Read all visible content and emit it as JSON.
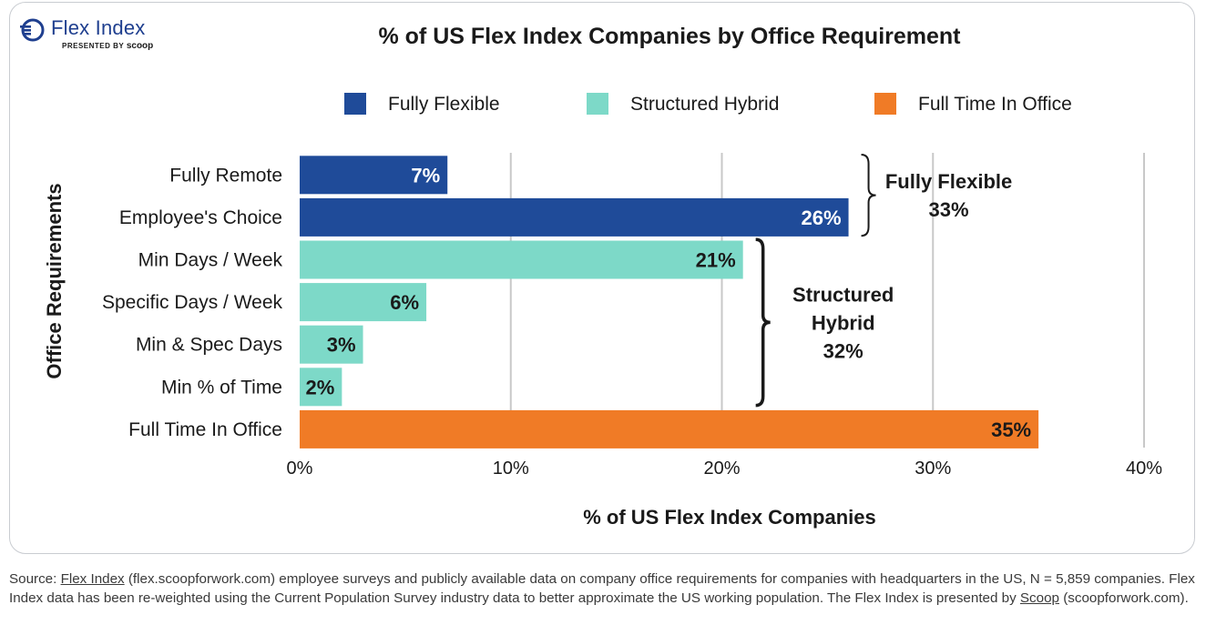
{
  "logo": {
    "brand": "Flex Index",
    "presented_by": "PRESENTED BY",
    "partner": "scoop"
  },
  "chart_data": {
    "type": "bar",
    "orientation": "horizontal",
    "title": "% of US Flex Index Companies by Office Requirement",
    "xlabel": "% of US Flex Index Companies",
    "ylabel": "Office Requirements",
    "xlim": [
      0,
      40
    ],
    "x_ticks": [
      {
        "value": 0,
        "label": "0%"
      },
      {
        "value": 10,
        "label": "10%"
      },
      {
        "value": 20,
        "label": "20%"
      },
      {
        "value": 30,
        "label": "30%"
      },
      {
        "value": 40,
        "label": "40%"
      }
    ],
    "grid": "vertical",
    "legend_position": "top",
    "legend": [
      {
        "name": "Fully Flexible",
        "color": "#1f4b99"
      },
      {
        "name": "Structured Hybrid",
        "color": "#7dd9c8"
      },
      {
        "name": "Full Time In Office",
        "color": "#f07b26"
      }
    ],
    "categories": [
      "Fully Remote",
      "Employee's Choice",
      "Min Days / Week",
      "Specific Days / Week",
      "Min & Spec Days",
      "Min % of Time",
      "Full Time In Office"
    ],
    "values": [
      7,
      26,
      21,
      6,
      3,
      2,
      35
    ],
    "data_labels": [
      "7%",
      "26%",
      "21%",
      "6%",
      "3%",
      "2%",
      "35%"
    ],
    "group": [
      0,
      0,
      1,
      1,
      1,
      1,
      2
    ],
    "label_colors": [
      "#ffffff",
      "#1a1a1a",
      "#1a1a1a"
    ],
    "annotations": [
      {
        "group": 0,
        "from": 0,
        "to": 1,
        "lines": [
          "Fully Flexible",
          "33%"
        ]
      },
      {
        "group": 1,
        "from": 2,
        "to": 5,
        "lines": [
          "Structured",
          "Hybrid",
          "32%"
        ]
      }
    ]
  },
  "source": {
    "prefix": "Source: ",
    "link1": "Flex Index",
    "middle": " (flex.scoopforwork.com) employee surveys and publicly available data on company office requirements for companies with headquarters in the US, N = 5,859 companies. Flex Index data has been re-weighted using the Current Population Survey industry data to better approximate the US working population. The Flex Index is presented by ",
    "link2": "Scoop",
    "suffix": " (scoopforwork.com)."
  }
}
